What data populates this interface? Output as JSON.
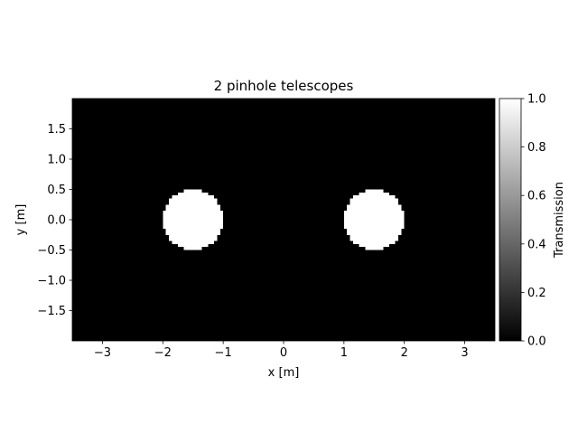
{
  "chart_data": {
    "type": "heatmap",
    "title": "2 pinhole telescopes",
    "xlabel": "x [m]",
    "ylabel": "y [m]",
    "xlim": [
      -3.5,
      3.5
    ],
    "ylim": [
      -2.0,
      2.0
    ],
    "xticks": [
      -3,
      -2,
      -1,
      0,
      1,
      2,
      3
    ],
    "xtick_labels": [
      "−3",
      "−2",
      "−1",
      "0",
      "1",
      "2",
      "3"
    ],
    "yticks": [
      1.5,
      1.0,
      0.5,
      0.0,
      -0.5,
      -1.0,
      -1.5
    ],
    "ytick_labels": [
      "1.5",
      "1.0",
      "0.5",
      "0.0",
      "−0.5",
      "−1.0",
      "−1.5"
    ],
    "colormap": "gray",
    "background_value": 0.0,
    "apertures": [
      {
        "center_x": -1.5,
        "center_y": 0.0,
        "radius": 0.5,
        "value": 1.0
      },
      {
        "center_x": 1.5,
        "center_y": 0.0,
        "radius": 0.5,
        "value": 1.0
      }
    ],
    "colorbar": {
      "label": "Transmission",
      "range": [
        0.0,
        1.0
      ],
      "ticks": [
        1.0,
        0.8,
        0.6,
        0.4,
        0.2,
        0.0
      ],
      "tick_labels": [
        "1.0",
        "0.8",
        "0.6",
        "0.4",
        "0.2",
        "0.0"
      ]
    },
    "grid": false
  }
}
